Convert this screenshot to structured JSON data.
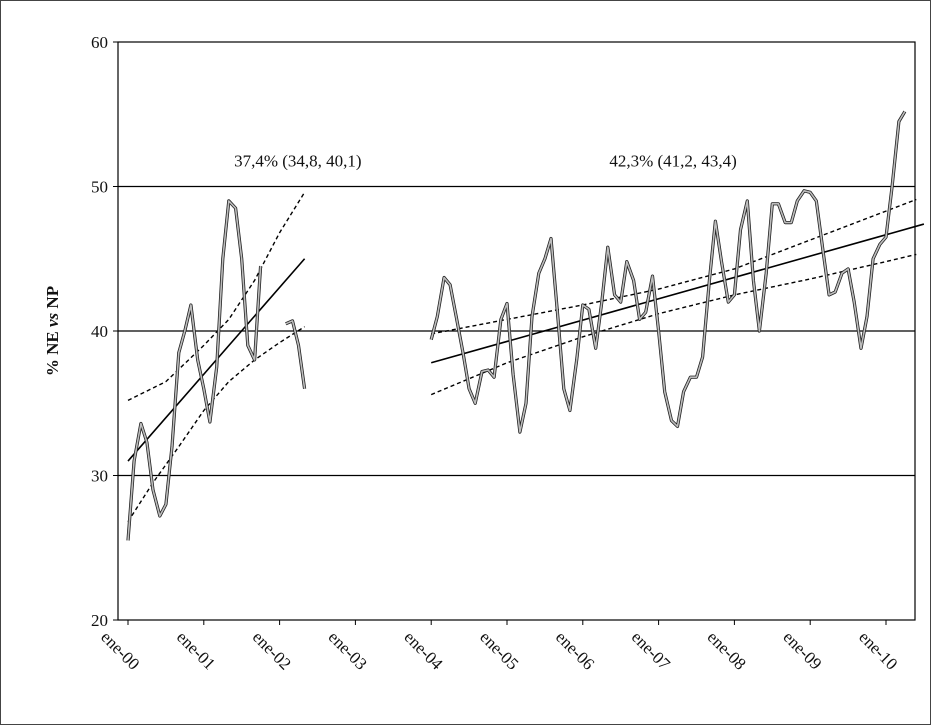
{
  "chart_data": {
    "type": "line",
    "title": "",
    "xlabel": "",
    "ylabel": "% NE vs NP",
    "ylabel_parts": [
      "% NE ",
      "vs",
      " NP"
    ],
    "ylim": [
      20,
      60
    ],
    "yticks": [
      20,
      30,
      40,
      50,
      60
    ],
    "xlim": [
      0,
      10.5
    ],
    "x_tick_labels": [
      "ene-00",
      "ene-01",
      "ene-02",
      "ene-03",
      "ene-04",
      "ene-05",
      "ene-06",
      "ene-07",
      "ene-08",
      "ene-09",
      "ene-10"
    ],
    "grid": "horizontal",
    "annotations": [
      {
        "text": "37,4% (34,8, 40,1)",
        "x": 1.4,
        "y": 51.8
      },
      {
        "text": "42,3% (41,2, 43,4)",
        "x": 6.35,
        "y": 51.8
      }
    ],
    "observed_series": [
      {
        "segment": 1,
        "points": [
          [
            0.0,
            25.5
          ],
          [
            0.08,
            31.0
          ],
          [
            0.17,
            33.6
          ],
          [
            0.25,
            32.3
          ],
          [
            0.33,
            29.0
          ],
          [
            0.42,
            27.2
          ],
          [
            0.5,
            28.0
          ],
          [
            0.58,
            32.0
          ],
          [
            0.67,
            38.5
          ],
          [
            0.75,
            40.0
          ],
          [
            0.83,
            41.8
          ],
          [
            0.92,
            38.0
          ],
          [
            1.0,
            36.0
          ],
          [
            1.08,
            33.7
          ],
          [
            1.17,
            37.5
          ],
          [
            1.25,
            45.0
          ],
          [
            1.33,
            49.0
          ],
          [
            1.42,
            48.5
          ],
          [
            1.5,
            45.0
          ],
          [
            1.58,
            39.0
          ],
          [
            1.67,
            38.0
          ],
          [
            1.75,
            44.5
          ]
        ]
      },
      {
        "segment": 2,
        "points": [
          [
            2.08,
            40.5
          ],
          [
            2.17,
            40.7
          ],
          [
            2.25,
            39.0
          ],
          [
            2.33,
            36.0
          ]
        ]
      },
      {
        "segment": 3,
        "points": [
          [
            4.0,
            39.4
          ],
          [
            4.08,
            41.0
          ],
          [
            4.17,
            43.7
          ],
          [
            4.25,
            43.2
          ],
          [
            4.33,
            41.0
          ],
          [
            4.42,
            38.5
          ],
          [
            4.5,
            36.0
          ],
          [
            4.58,
            35.0
          ],
          [
            4.67,
            37.2
          ],
          [
            4.75,
            37.3
          ],
          [
            4.83,
            36.8
          ],
          [
            4.92,
            40.8
          ],
          [
            5.0,
            41.9
          ],
          [
            5.08,
            37.0
          ],
          [
            5.17,
            33.0
          ],
          [
            5.25,
            35.0
          ],
          [
            5.33,
            41.0
          ],
          [
            5.42,
            44.0
          ],
          [
            5.5,
            45.0
          ],
          [
            5.58,
            46.4
          ],
          [
            5.67,
            41.0
          ],
          [
            5.75,
            36.0
          ],
          [
            5.83,
            34.5
          ],
          [
            5.92,
            38.0
          ],
          [
            6.0,
            41.8
          ],
          [
            6.08,
            41.5
          ],
          [
            6.17,
            38.8
          ],
          [
            6.25,
            42.0
          ],
          [
            6.33,
            45.8
          ],
          [
            6.42,
            42.5
          ],
          [
            6.5,
            42.0
          ],
          [
            6.58,
            44.8
          ],
          [
            6.67,
            43.5
          ],
          [
            6.75,
            40.8
          ],
          [
            6.83,
            41.3
          ],
          [
            6.92,
            43.8
          ],
          [
            7.0,
            40.0
          ],
          [
            7.08,
            35.8
          ],
          [
            7.17,
            33.8
          ],
          [
            7.25,
            33.4
          ],
          [
            7.33,
            35.8
          ],
          [
            7.42,
            36.8
          ],
          [
            7.5,
            36.8
          ],
          [
            7.58,
            38.2
          ],
          [
            7.67,
            43.5
          ],
          [
            7.75,
            47.6
          ],
          [
            7.83,
            44.8
          ],
          [
            7.92,
            42.0
          ],
          [
            8.0,
            42.5
          ],
          [
            8.08,
            47.0
          ],
          [
            8.17,
            49.0
          ],
          [
            8.25,
            43.5
          ],
          [
            8.33,
            40.0
          ],
          [
            8.42,
            44.0
          ],
          [
            8.5,
            48.8
          ],
          [
            8.58,
            48.8
          ],
          [
            8.67,
            47.5
          ],
          [
            8.75,
            47.5
          ],
          [
            8.83,
            49.0
          ],
          [
            8.92,
            49.7
          ],
          [
            9.0,
            49.6
          ],
          [
            9.08,
            49.0
          ],
          [
            9.17,
            45.5
          ],
          [
            9.25,
            42.5
          ],
          [
            9.33,
            42.7
          ],
          [
            9.42,
            44.0
          ],
          [
            9.5,
            44.3
          ],
          [
            9.58,
            42.0
          ],
          [
            9.67,
            38.8
          ],
          [
            9.75,
            41.0
          ],
          [
            9.83,
            45.0
          ],
          [
            9.92,
            46.0
          ],
          [
            10.0,
            46.5
          ],
          [
            10.08,
            50.0
          ],
          [
            10.17,
            54.5
          ],
          [
            10.25,
            55.2
          ]
        ]
      }
    ],
    "trend_lines": [
      {
        "segment": 1,
        "kind": "fit",
        "from": [
          0.0,
          31.0
        ],
        "to": [
          2.33,
          45.0
        ]
      },
      {
        "segment": 1,
        "kind": "ci_upper",
        "points": [
          [
            0.0,
            35.2
          ],
          [
            0.5,
            36.5
          ],
          [
            1.0,
            39.0
          ],
          [
            1.33,
            40.8
          ],
          [
            1.67,
            43.5
          ],
          [
            2.0,
            46.8
          ],
          [
            2.33,
            49.6
          ]
        ]
      },
      {
        "segment": 1,
        "kind": "ci_lower",
        "points": [
          [
            0.0,
            26.8
          ],
          [
            0.33,
            29.5
          ],
          [
            0.67,
            32.0
          ],
          [
            1.0,
            34.5
          ],
          [
            1.33,
            36.5
          ],
          [
            1.67,
            38.0
          ],
          [
            2.0,
            39.2
          ],
          [
            2.33,
            40.3
          ]
        ]
      },
      {
        "segment": 2,
        "kind": "fit",
        "from": [
          4.0,
          37.8
        ],
        "to": [
          10.5,
          47.4
        ]
      },
      {
        "segment": 2,
        "kind": "ci_upper",
        "points": [
          [
            4.0,
            39.8
          ],
          [
            5.0,
            40.8
          ],
          [
            6.0,
            41.8
          ],
          [
            7.0,
            42.9
          ],
          [
            8.0,
            44.3
          ],
          [
            9.0,
            46.3
          ],
          [
            10.0,
            48.3
          ],
          [
            10.4,
            49.1
          ]
        ]
      },
      {
        "segment": 2,
        "kind": "ci_lower",
        "points": [
          [
            4.0,
            35.6
          ],
          [
            5.0,
            37.8
          ],
          [
            6.0,
            39.6
          ],
          [
            7.0,
            41.2
          ],
          [
            8.0,
            42.5
          ],
          [
            9.0,
            43.6
          ],
          [
            10.0,
            44.8
          ],
          [
            10.4,
            45.3
          ]
        ]
      }
    ]
  }
}
